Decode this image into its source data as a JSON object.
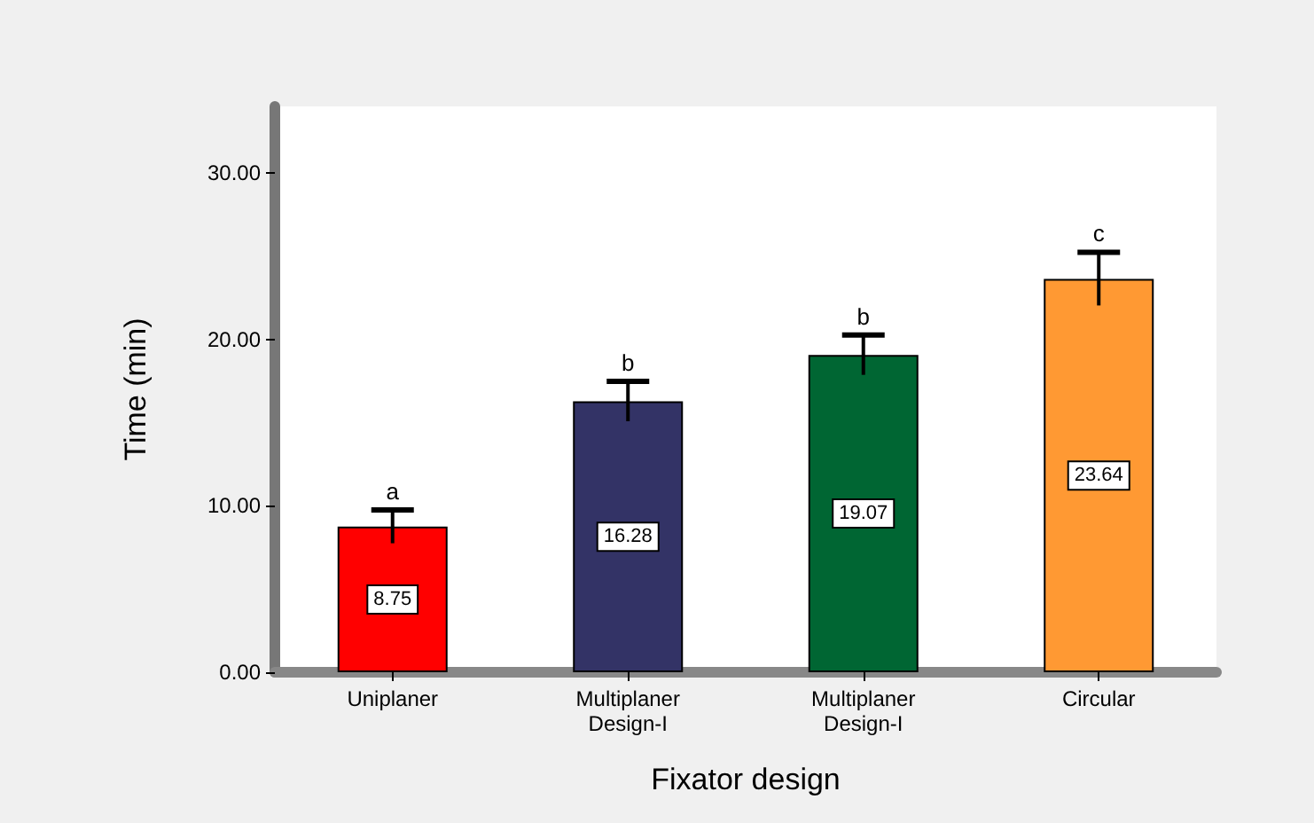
{
  "chart_data": {
    "type": "bar",
    "xlabel": "Fixator design",
    "ylabel": "Time (min)",
    "categories": [
      "Uniplaner",
      "Multiplaner Design-I",
      "Multiplaner Design-I",
      "Circular"
    ],
    "values": [
      8.75,
      16.28,
      19.07,
      23.64
    ],
    "value_labels": [
      "8.75",
      "16.28",
      "19.07",
      "23.64"
    ],
    "colors": [
      "#ff0000",
      "#333366",
      "#006633",
      "#ff9933"
    ],
    "errors": [
      1.0,
      1.2,
      1.2,
      1.6
    ],
    "ylim": [
      0,
      34
    ],
    "yticks": [
      {
        "value": 0,
        "label": "0.00"
      },
      {
        "value": 10,
        "label": "10.00"
      },
      {
        "value": 20,
        "label": "20.00"
      },
      {
        "value": 30,
        "label": "30.00"
      }
    ],
    "annotations": [
      "a",
      "b",
      "b",
      "c"
    ],
    "grid": false
  }
}
